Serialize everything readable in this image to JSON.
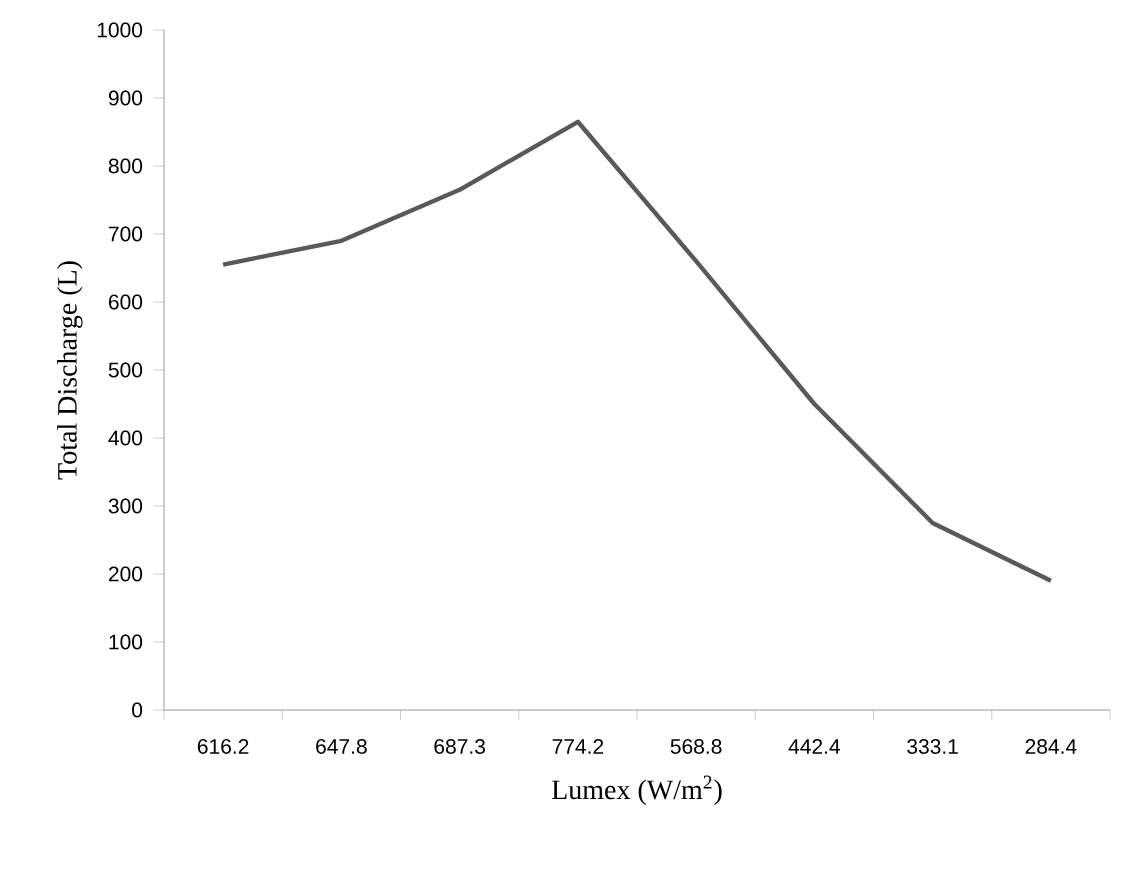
{
  "chart_data": {
    "type": "line",
    "xlabel": "Lumex (W/m$^{2}$)",
    "ylabel": "Total Discharge (L)",
    "categories": [
      "616.2",
      "647.8",
      "687.3",
      "774.2",
      "568.8",
      "442.4",
      "333.1",
      "284.4"
    ],
    "series": [
      {
        "color": "#595959",
        "values": [
          655,
          690,
          765,
          865,
          660,
          450,
          275,
          190
        ]
      }
    ],
    "ylim": [
      0,
      1000
    ],
    "yticks": [
      0,
      100,
      200,
      300,
      400,
      500,
      600,
      700,
      800,
      900,
      1000
    ],
    "grid": false,
    "marker": "none",
    "line_style": "solid"
  }
}
